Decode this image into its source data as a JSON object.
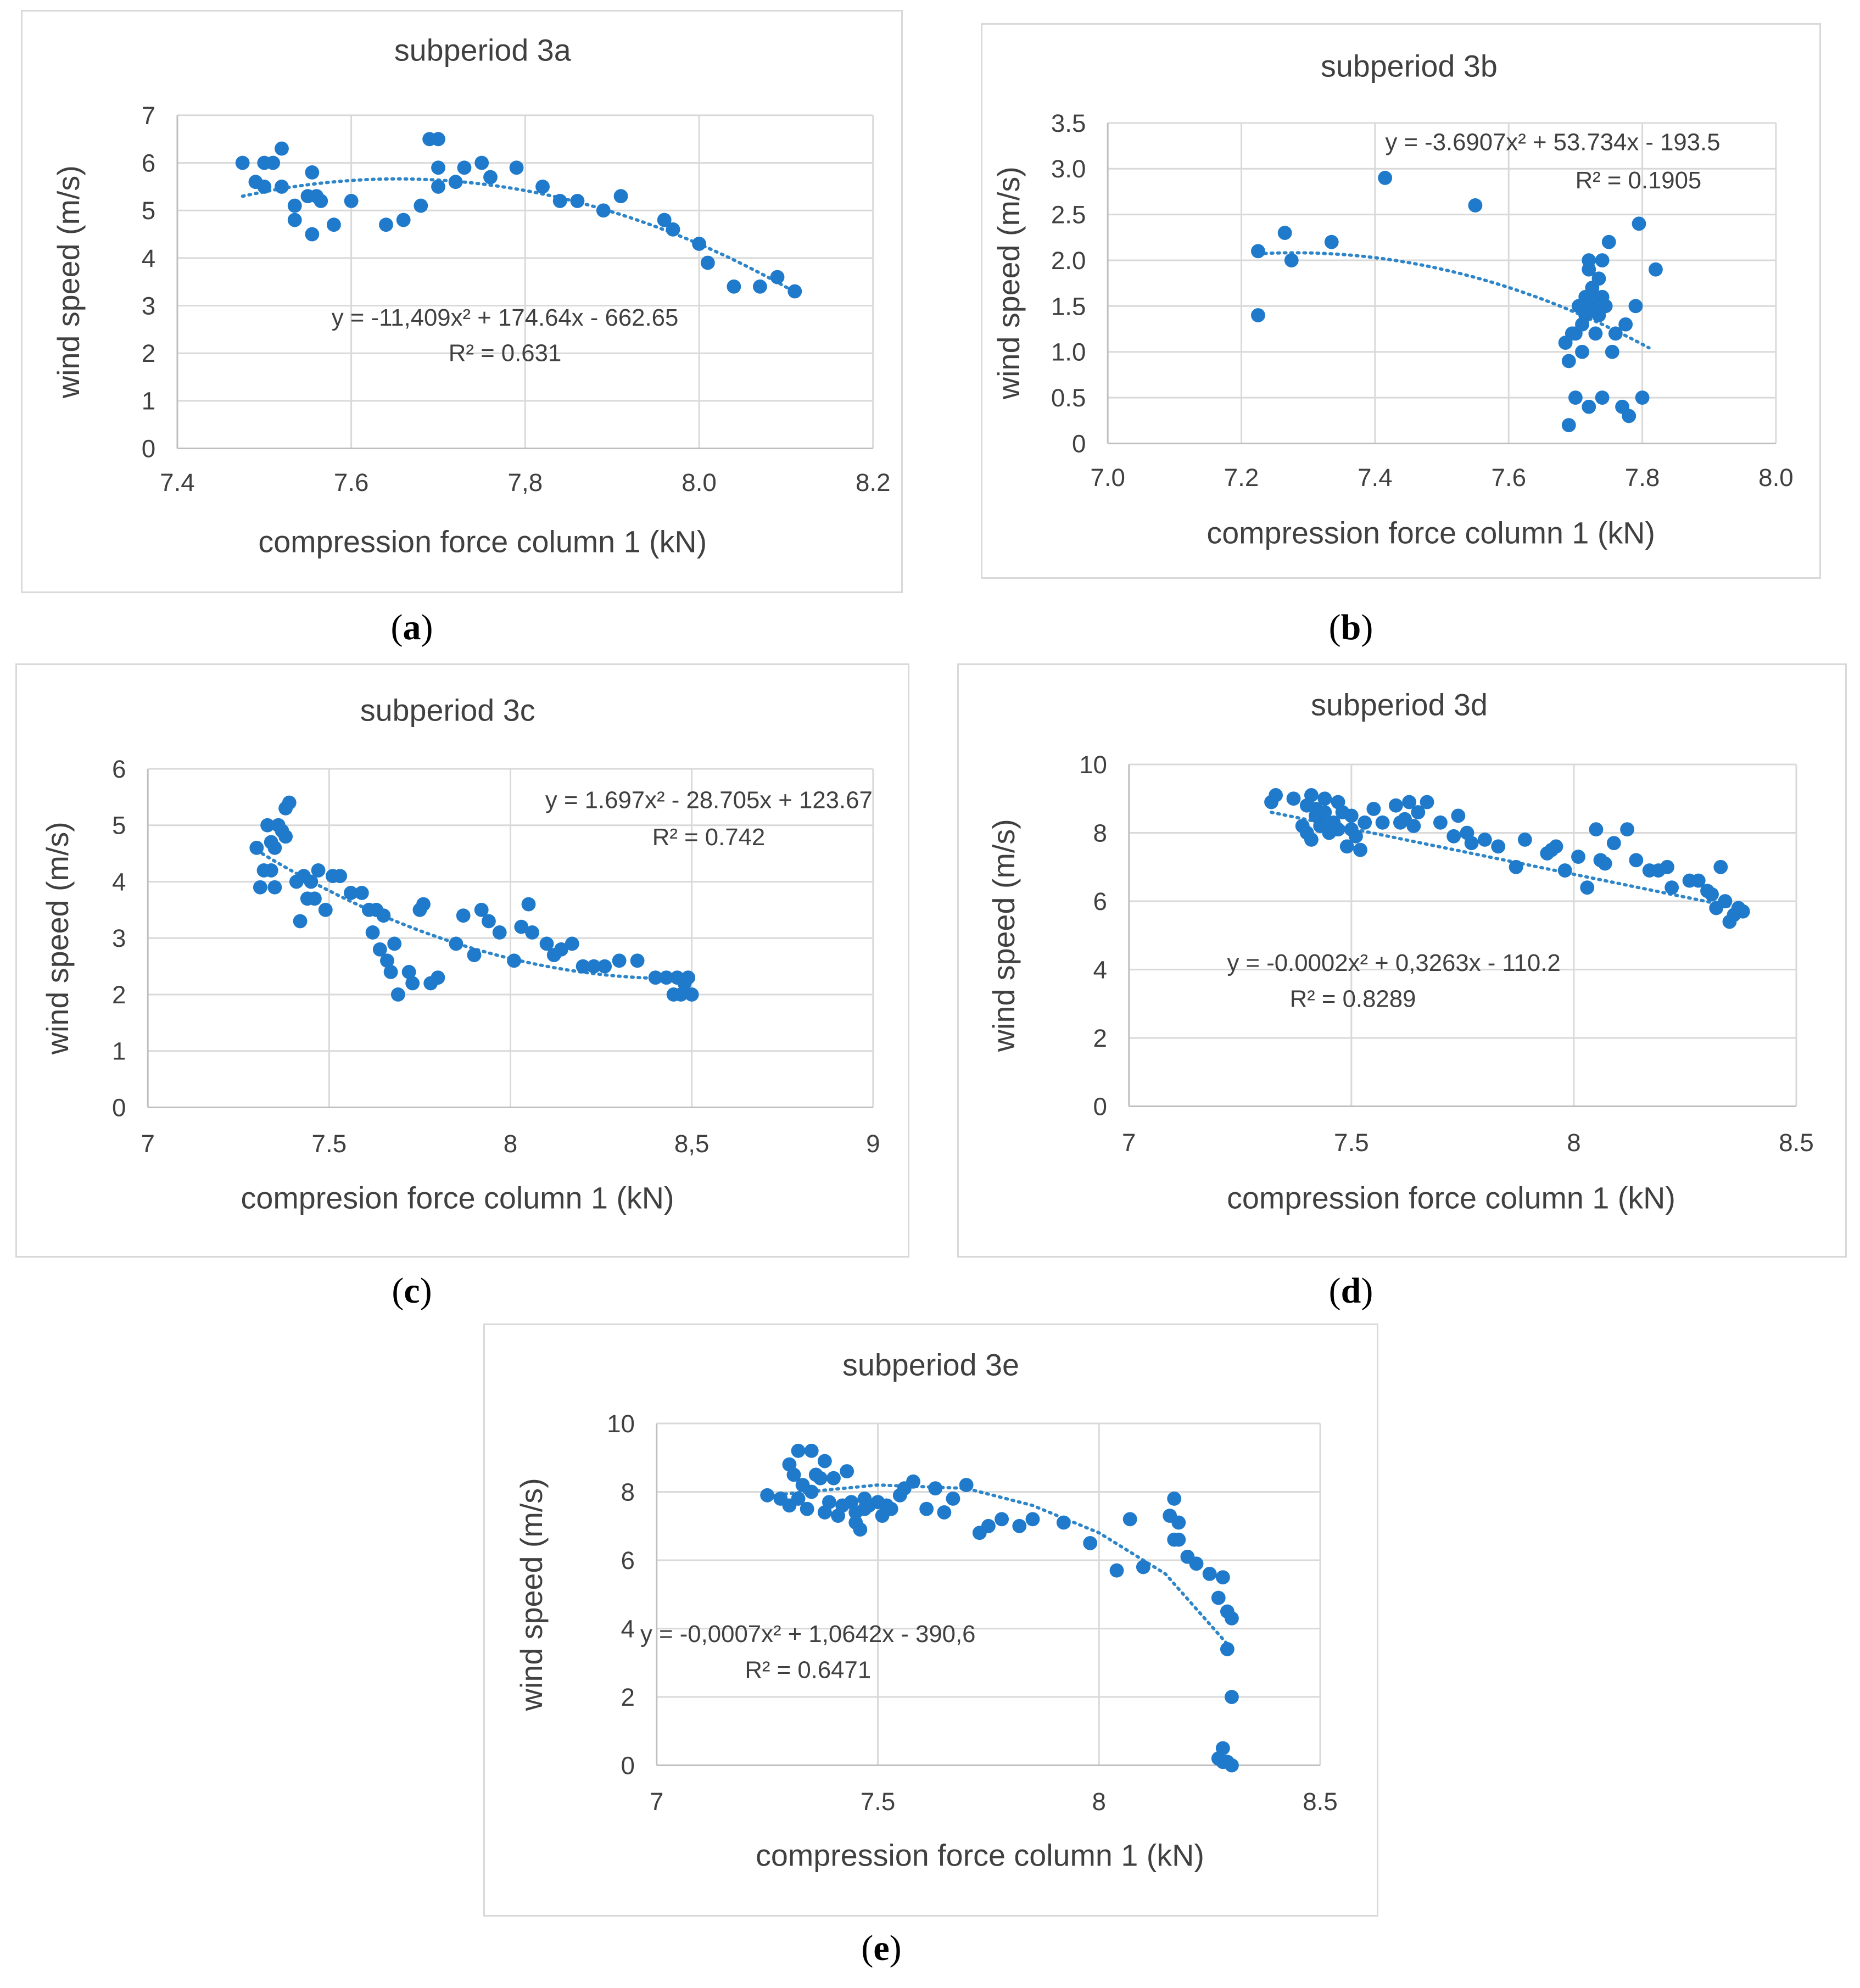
{
  "chart_data": [
    {
      "id": "a",
      "type": "scatter",
      "caption": "a",
      "title": "subperiod 3a",
      "xlabel": "compression force column 1 (kN)",
      "ylabel": "wind speed (m/s)",
      "xlim": [
        7.4,
        8.2
      ],
      "ylim": [
        0,
        7
      ],
      "xticks": [
        7.4,
        7.6,
        7.8,
        8.0,
        8.2
      ],
      "xtick_labels": [
        "7.4",
        "7.6",
        "7,8",
        "8.0",
        "8.2"
      ],
      "yticks": [
        0,
        1,
        2,
        3,
        4,
        5,
        6,
        7
      ],
      "ytick_labels": [
        "0",
        "1",
        "2",
        "3",
        "4",
        "5",
        "6",
        "7"
      ],
      "equation": "y = -11,409x² + 174.64x - 662.65",
      "r2": "R² = 0.631",
      "trendline": {
        "a": -11.409,
        "b": 174.64,
        "c": -662.65,
        "x_range": [
          7.475,
          8.11
        ]
      },
      "x": [
        7.475,
        7.49,
        7.5,
        7.5,
        7.51,
        7.52,
        7.52,
        7.535,
        7.535,
        7.55,
        7.555,
        7.555,
        7.56,
        7.565,
        7.58,
        7.6,
        7.64,
        7.66,
        7.68,
        7.69,
        7.7,
        7.7,
        7.7,
        7.72,
        7.73,
        7.75,
        7.76,
        7.79,
        7.82,
        7.84,
        7.86,
        7.89,
        7.91,
        7.96,
        7.97,
        8.0,
        8.01,
        8.04,
        8.07,
        8.09,
        8.11
      ],
      "y": [
        6.0,
        5.6,
        6.0,
        5.5,
        6.0,
        6.3,
        5.5,
        5.1,
        4.8,
        5.3,
        5.8,
        4.5,
        5.3,
        5.2,
        4.7,
        5.2,
        4.7,
        4.8,
        5.1,
        6.5,
        6.5,
        5.9,
        5.5,
        5.6,
        5.9,
        6.0,
        5.7,
        5.9,
        5.5,
        5.2,
        5.2,
        5.0,
        5.3,
        4.8,
        4.6,
        4.3,
        3.9,
        3.4,
        3.4,
        3.6,
        3.3
      ]
    },
    {
      "id": "b",
      "type": "scatter",
      "caption": "b",
      "title": "subperiod 3b",
      "xlabel": "compression force column 1 (kN)",
      "ylabel": "wind speed (m/s)",
      "xlim": [
        7.0,
        8.0
      ],
      "ylim": [
        0,
        3.5
      ],
      "xticks": [
        7.0,
        7.2,
        7.4,
        7.6,
        7.8,
        8.0
      ],
      "xtick_labels": [
        "7.0",
        "7.2",
        "7.4",
        "7.6",
        "7.8",
        "8.0"
      ],
      "yticks": [
        0,
        0.5,
        1.0,
        1.5,
        2.0,
        2.5,
        3.0,
        3.5
      ],
      "ytick_labels": [
        "0",
        "0.5",
        "1.0",
        "1.5",
        "2.0",
        "2.5",
        "3.0",
        "3.5"
      ],
      "equation": "y = -3.6907x² + 53.734x - 193.5",
      "r2": "R² = 0.1905",
      "trendline": {
        "a": -3.6907,
        "b": 53.734,
        "c": -193.5,
        "x_range": [
          7.225,
          7.81
        ]
      },
      "x": [
        7.225,
        7.225,
        7.265,
        7.275,
        7.335,
        7.415,
        7.55,
        7.685,
        7.69,
        7.69,
        7.695,
        7.7,
        7.7,
        7.705,
        7.71,
        7.71,
        7.715,
        7.715,
        7.72,
        7.72,
        7.72,
        7.725,
        7.725,
        7.73,
        7.73,
        7.735,
        7.735,
        7.74,
        7.74,
        7.74,
        7.745,
        7.75,
        7.755,
        7.76,
        7.77,
        7.775,
        7.78,
        7.79,
        7.795,
        7.8,
        7.82
      ],
      "y": [
        2.1,
        1.4,
        2.3,
        2.0,
        2.2,
        2.9,
        2.6,
        1.1,
        0.2,
        0.9,
        1.2,
        1.2,
        0.5,
        1.5,
        1.3,
        1.0,
        1.4,
        1.6,
        2.0,
        1.9,
        0.4,
        1.5,
        1.7,
        1.6,
        1.2,
        1.8,
        1.4,
        2.0,
        1.6,
        0.5,
        1.5,
        2.2,
        1.0,
        1.2,
        0.4,
        1.3,
        0.3,
        1.5,
        2.4,
        0.5,
        1.9
      ]
    },
    {
      "id": "c",
      "type": "scatter",
      "caption": "c",
      "title": "subperiod 3c",
      "xlabel": "compresion force column 1 (kN)",
      "ylabel": "wind speed (m/s)",
      "xlim": [
        7,
        9
      ],
      "ylim": [
        0,
        6
      ],
      "xticks": [
        7,
        7.5,
        8,
        8.5,
        9
      ],
      "xtick_labels": [
        "7",
        "7.5",
        "8",
        "8,5",
        "9"
      ],
      "yticks": [
        0,
        1,
        2,
        3,
        4,
        5,
        6
      ],
      "ytick_labels": [
        "0",
        "1",
        "2",
        "3",
        "4",
        "5",
        "6"
      ],
      "equation": "y = 1.697x² - 28.705x + 123.67",
      "r2": "R² = 0.742",
      "trendline": {
        "a": 1.697,
        "b": -28.705,
        "c": 123.67,
        "x_range": [
          7.3,
          8.5
        ]
      },
      "x": [
        7.3,
        7.31,
        7.32,
        7.33,
        7.34,
        7.34,
        7.35,
        7.35,
        7.36,
        7.37,
        7.38,
        7.38,
        7.39,
        7.41,
        7.42,
        7.43,
        7.44,
        7.45,
        7.46,
        7.47,
        7.49,
        7.51,
        7.53,
        7.56,
        7.59,
        7.61,
        7.62,
        7.63,
        7.64,
        7.65,
        7.66,
        7.67,
        7.68,
        7.69,
        7.72,
        7.73,
        7.75,
        7.76,
        7.78,
        7.8,
        7.85,
        7.87,
        7.9,
        7.92,
        7.94,
        7.97,
        8.01,
        8.03,
        8.05,
        8.06,
        8.1,
        8.12,
        8.14,
        8.17,
        8.2,
        8.23,
        8.26,
        8.3,
        8.35,
        8.4,
        8.43,
        8.45,
        8.46,
        8.47,
        8.48,
        8.49,
        8.5
      ],
      "y": [
        4.6,
        3.9,
        4.2,
        5.0,
        4.7,
        4.2,
        4.6,
        3.9,
        5.0,
        4.9,
        5.3,
        4.8,
        5.4,
        4.0,
        3.3,
        4.1,
        3.7,
        4.0,
        3.7,
        4.2,
        3.5,
        4.1,
        4.1,
        3.8,
        3.8,
        3.5,
        3.1,
        3.5,
        2.8,
        3.4,
        2.6,
        2.4,
        2.9,
        2.0,
        2.4,
        2.2,
        3.5,
        3.6,
        2.2,
        2.3,
        2.9,
        3.4,
        2.7,
        3.5,
        3.3,
        3.1,
        2.6,
        3.2,
        3.6,
        3.1,
        2.9,
        2.7,
        2.8,
        2.9,
        2.5,
        2.5,
        2.5,
        2.6,
        2.6,
        2.3,
        2.3,
        2.0,
        2.3,
        2.0,
        2.2,
        2.3,
        2.0
      ]
    },
    {
      "id": "d",
      "type": "scatter",
      "caption": "d",
      "title": "subperiod 3d",
      "xlabel": "compression force column 1 (kN)",
      "ylabel": "wind speed (m/s)",
      "xlim": [
        7,
        8.5
      ],
      "ylim": [
        0,
        10
      ],
      "xticks": [
        7,
        7.5,
        8,
        8.5
      ],
      "xtick_labels": [
        "7",
        "7.5",
        "8",
        "8.5"
      ],
      "yticks": [
        0,
        2,
        4,
        6,
        8,
        10
      ],
      "ytick_labels": [
        "0",
        "2",
        "4",
        "6",
        "8",
        "10"
      ],
      "equation": "y = -0.0002x² + 0,3263x - 110.2",
      "r2": "R² = 0.8289",
      "trendline": {
        "linear": true,
        "x1": 7.32,
        "y1": 8.6,
        "x2": 8.37,
        "y2": 5.8
      },
      "x": [
        7.32,
        7.33,
        7.37,
        7.39,
        7.4,
        7.4,
        7.41,
        7.41,
        7.42,
        7.42,
        7.43,
        7.43,
        7.44,
        7.44,
        7.45,
        7.46,
        7.47,
        7.47,
        7.48,
        7.49,
        7.5,
        7.5,
        7.51,
        7.52,
        7.53,
        7.55,
        7.57,
        7.6,
        7.61,
        7.62,
        7.63,
        7.64,
        7.65,
        7.67,
        7.7,
        7.73,
        7.74,
        7.76,
        7.77,
        7.8,
        7.83,
        7.87,
        7.89,
        7.94,
        7.95,
        7.96,
        7.98,
        8.01,
        8.03,
        8.05,
        8.06,
        8.07,
        8.09,
        8.12,
        8.14,
        8.17,
        8.19,
        8.21,
        8.22,
        8.26,
        8.28,
        8.3,
        8.31,
        8.32,
        8.33,
        8.34,
        8.35,
        8.36,
        8.37,
        8.38
      ],
      "y": [
        8.9,
        9.1,
        9.0,
        8.2,
        8.0,
        8.8,
        7.8,
        9.1,
        8.5,
        8.7,
        8.4,
        8.2,
        9.0,
        8.6,
        8.0,
        8.3,
        8.9,
        8.1,
        8.6,
        7.6,
        8.5,
        8.1,
        7.9,
        7.5,
        8.3,
        8.7,
        8.3,
        8.8,
        8.3,
        8.4,
        8.9,
        8.2,
        8.6,
        8.9,
        8.3,
        7.9,
        8.5,
        8.0,
        7.7,
        7.8,
        7.6,
        7.0,
        7.8,
        7.4,
        7.5,
        7.6,
        6.9,
        7.3,
        6.4,
        8.1,
        7.2,
        7.1,
        7.7,
        8.1,
        7.2,
        6.9,
        6.9,
        7.0,
        6.4,
        6.6,
        6.6,
        6.3,
        6.2,
        5.8,
        7.0,
        6.0,
        5.4,
        5.6,
        5.8,
        5.7
      ]
    },
    {
      "id": "e",
      "type": "scatter",
      "caption": "e",
      "title": "subperiod 3e",
      "xlabel": "compression force column 1 (kN)",
      "ylabel": "wind speed (m/s)",
      "xlim": [
        7,
        8.5
      ],
      "ylim": [
        0,
        10
      ],
      "xticks": [
        7,
        7.5,
        8,
        8.5
      ],
      "xtick_labels": [
        "7",
        "7.5",
        "8",
        "8.5"
      ],
      "yticks": [
        0,
        2,
        4,
        6,
        8,
        10
      ],
      "ytick_labels": [
        "0",
        "2",
        "4",
        "6",
        "8",
        "10"
      ],
      "equation": "y = -0,0007x² + 1,0642x - 390,6",
      "r2": "R² = 0.6471",
      "trendline": {
        "a": -0.0007,
        "b": 1.0642,
        "c": -390.6,
        "x_range": [
          7.26,
          8.3
        ],
        "mode": "visual",
        "points": [
          [
            7.26,
            7.9
          ],
          [
            7.5,
            8.2
          ],
          [
            7.7,
            8.1
          ],
          [
            7.85,
            7.6
          ],
          [
            8.0,
            6.8
          ],
          [
            8.15,
            5.6
          ],
          [
            8.3,
            3.4
          ]
        ]
      },
      "x": [
        7.25,
        7.28,
        7.3,
        7.3,
        7.31,
        7.32,
        7.32,
        7.33,
        7.34,
        7.35,
        7.35,
        7.36,
        7.37,
        7.38,
        7.38,
        7.39,
        7.4,
        7.41,
        7.42,
        7.43,
        7.44,
        7.45,
        7.45,
        7.46,
        7.47,
        7.47,
        7.48,
        7.5,
        7.51,
        7.52,
        7.53,
        7.55,
        7.56,
        7.58,
        7.61,
        7.63,
        7.65,
        7.67,
        7.7,
        7.73,
        7.75,
        7.78,
        7.82,
        7.85,
        7.92,
        7.98,
        8.04,
        8.07,
        8.1,
        8.16,
        8.17,
        8.17,
        8.18,
        8.18,
        8.2,
        8.22,
        8.25,
        8.27,
        8.28,
        8.29,
        8.29,
        8.3,
        8.3,
        8.27,
        8.28,
        8.29,
        8.28,
        8.3
      ],
      "y": [
        7.9,
        7.8,
        8.8,
        7.6,
        8.5,
        9.2,
        7.8,
        8.2,
        7.5,
        9.2,
        8.0,
        8.5,
        8.4,
        7.4,
        8.9,
        7.7,
        8.4,
        7.3,
        7.6,
        8.6,
        7.7,
        7.4,
        7.1,
        6.9,
        7.8,
        7.5,
        7.6,
        7.7,
        7.3,
        7.6,
        7.5,
        7.9,
        8.1,
        8.3,
        7.5,
        8.1,
        7.4,
        7.8,
        8.2,
        6.8,
        7.0,
        7.2,
        7.0,
        7.2,
        7.1,
        6.5,
        5.7,
        7.2,
        5.8,
        7.3,
        6.6,
        7.8,
        6.6,
        7.1,
        6.1,
        5.9,
        5.6,
        4.9,
        5.5,
        4.5,
        3.4,
        4.3,
        2.0,
        0.2,
        0.5,
        0.1,
        0.1,
        0.0
      ]
    }
  ]
}
